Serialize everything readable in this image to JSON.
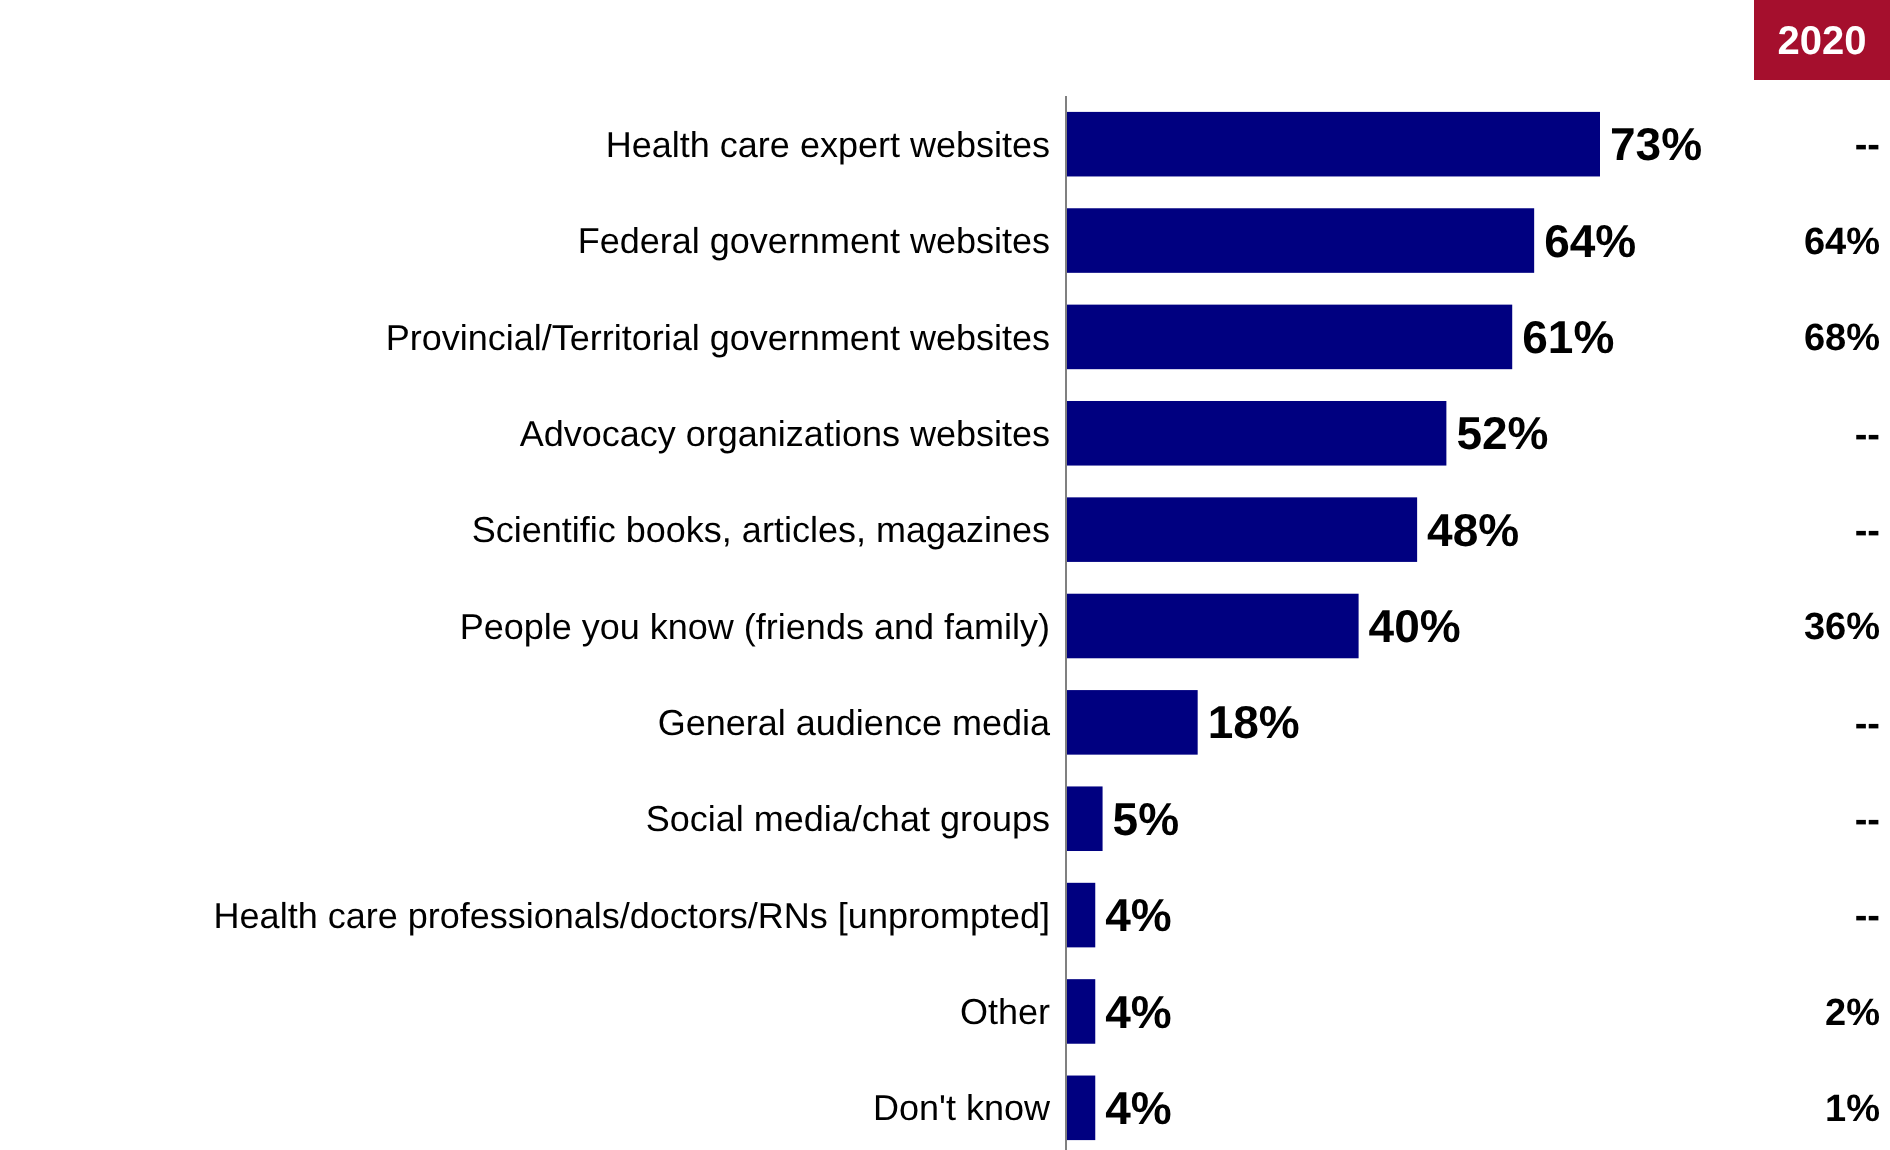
{
  "chart_data": {
    "type": "bar",
    "orientation": "horizontal",
    "tick_labels": "y",
    "categories": [
      "Health care expert websites",
      "Federal government websites",
      "Provincial/Territorial government websites",
      "Advocacy organizations websites",
      "Scientific books, articles, magazines",
      "People you know (friends and family)",
      "General audience media",
      "Social media/chat groups",
      "Health care professionals/doctors/RNs [unprompted]",
      "Other",
      "Don't know"
    ],
    "values": [
      73,
      64,
      61,
      52,
      48,
      40,
      18,
      5,
      4,
      4,
      4
    ],
    "value_labels": [
      "73%",
      "64%",
      "61%",
      "52%",
      "48%",
      "40%",
      "18%",
      "5%",
      "4%",
      "4%",
      "4%"
    ],
    "color": "#000080",
    "annotations": [
      "2020",
      "--",
      "64%",
      "68%",
      "--",
      "--",
      "36%",
      "--",
      "--",
      "--",
      "2%",
      "1%"
    ]
  }
}
